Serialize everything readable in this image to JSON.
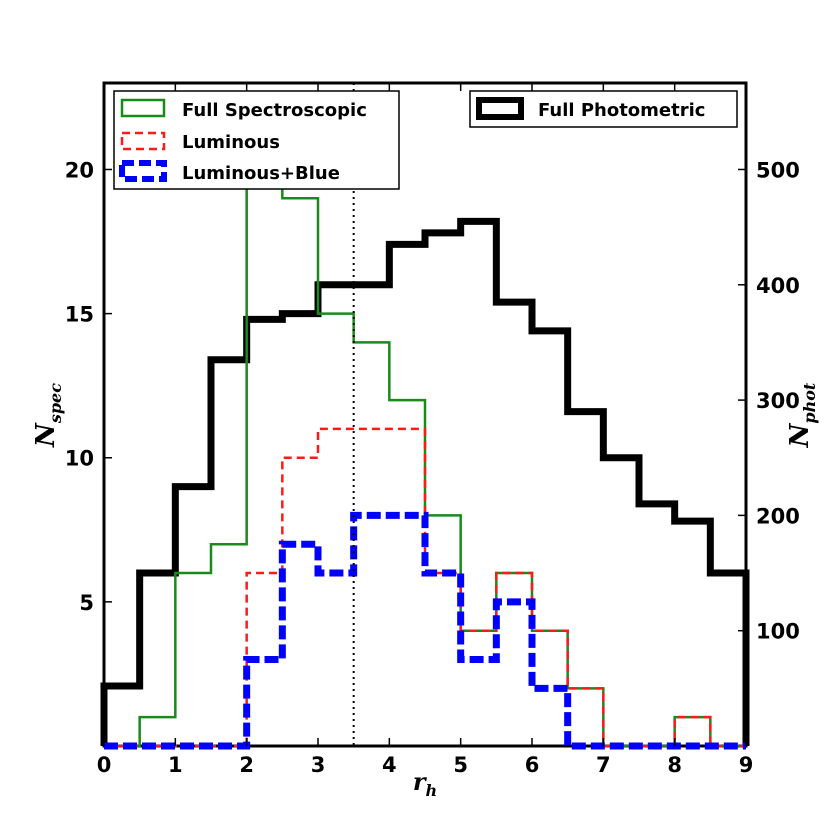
{
  "chart_data": {
    "type": "histogram",
    "bin_edges": [
      0,
      0.5,
      1,
      1.5,
      2,
      2.5,
      3,
      3.5,
      4,
      4.5,
      5,
      5.5,
      6,
      6.5,
      7,
      7.5,
      8,
      8.5,
      9
    ],
    "xlabel": "r",
    "xlabel_sub": "h",
    "ylabel_left": "N",
    "ylabel_left_sub": "spec",
    "ylabel_right": "N",
    "ylabel_right_sub": "phot",
    "xlim": [
      0,
      9
    ],
    "ylim_left": [
      0,
      23
    ],
    "ylim_right": [
      0,
      575
    ],
    "x_ticks": [
      "0",
      "1",
      "2",
      "3",
      "4",
      "5",
      "6",
      "7",
      "8",
      "9"
    ],
    "y_left_ticks": [
      "5",
      "10",
      "15",
      "20"
    ],
    "y_right_ticks": [
      "100",
      "200",
      "300",
      "400",
      "500"
    ],
    "vline_x": 3.5,
    "series": [
      {
        "name": "Full Spectroscopic",
        "axis": "left",
        "color": "#1a8a1a",
        "style": "solid",
        "values": [
          0,
          1,
          6,
          7,
          22,
          19,
          15,
          14,
          12,
          8,
          4,
          6,
          4,
          2,
          0,
          0,
          1,
          0
        ]
      },
      {
        "name": "Luminous",
        "axis": "left",
        "color": "#ff1a1a",
        "style": "dashed",
        "values": [
          0,
          0,
          0,
          0,
          6,
          10,
          11,
          11,
          11,
          6,
          4,
          6,
          4,
          2,
          0,
          0,
          1,
          0
        ]
      },
      {
        "name": "Luminous+Blue",
        "axis": "left",
        "color": "#0000ff",
        "style": "dashed-thick",
        "values": [
          0,
          0,
          0,
          0,
          3,
          7,
          6,
          8,
          8,
          6,
          3,
          5,
          2,
          0,
          0,
          0,
          0,
          0
        ]
      },
      {
        "name": "Full Photometric",
        "axis": "right",
        "color": "#000000",
        "style": "solid-thick",
        "values": [
          52,
          150,
          225,
          335,
          370,
          375,
          400,
          400,
          435,
          445,
          455,
          385,
          360,
          290,
          250,
          210,
          195,
          150
        ]
      }
    ],
    "legend_left": [
      "Full Spectroscopic",
      "Luminous",
      "Luminous+Blue"
    ],
    "legend_right": [
      "Full Photometric"
    ]
  }
}
